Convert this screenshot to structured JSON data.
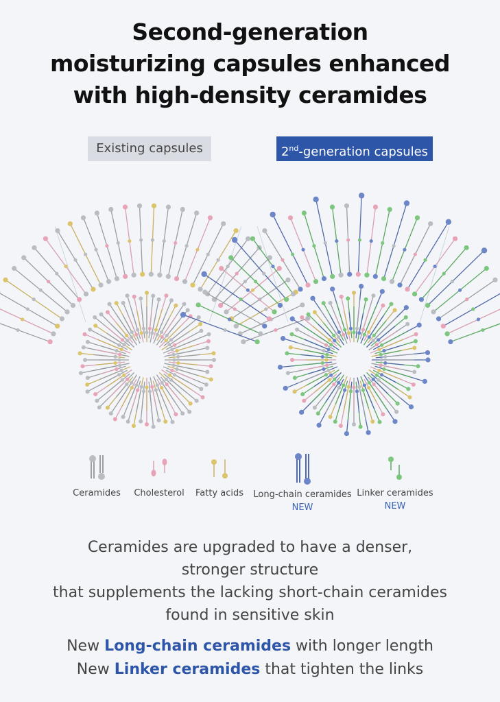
{
  "title": {
    "line1": "Second-generation",
    "line2": "moisturizing capsules enhanced",
    "line3": "with high-density ceramides"
  },
  "labels": {
    "existing": "Existing capsules",
    "second_sup": "nd",
    "second_prefix": "2",
    "second_suffix": "-generation capsules"
  },
  "legend": [
    {
      "name": "Ceramides",
      "color": "#b9bcc0",
      "badge": ""
    },
    {
      "name": "Cholesterol",
      "color": "#e8a3b6",
      "badge": ""
    },
    {
      "name": "Fatty acids",
      "color": "#dcc46a",
      "badge": ""
    },
    {
      "name": "Long-chain ceramides",
      "color": "#6c86c8",
      "badge": "NEW"
    },
    {
      "name": "Linker ceramides",
      "color": "#7cc67e",
      "badge": "NEW"
    }
  ],
  "description": {
    "line1": "Ceramides are upgraded to have a denser,",
    "line2": "stronger structure",
    "line3": "that supplements the lacking short-chain ceramides",
    "line4": "found in sensitive skin"
  },
  "highlights": {
    "line1_prefix": "New ",
    "line1_highlight": "Long-chain ceramides",
    "line1_suffix": " with longer length",
    "line2_prefix": "New ",
    "line2_highlight": "Linker ceramides",
    "line2_suffix": " that tighten the links"
  },
  "colors": {
    "ceramide": "#b9bcc0",
    "cholesterol": "#e8a3b6",
    "fatty_acid": "#dcc46a",
    "long_chain": "#6c86c8",
    "linker": "#7cc67e",
    "accent": "#2e56a8"
  }
}
